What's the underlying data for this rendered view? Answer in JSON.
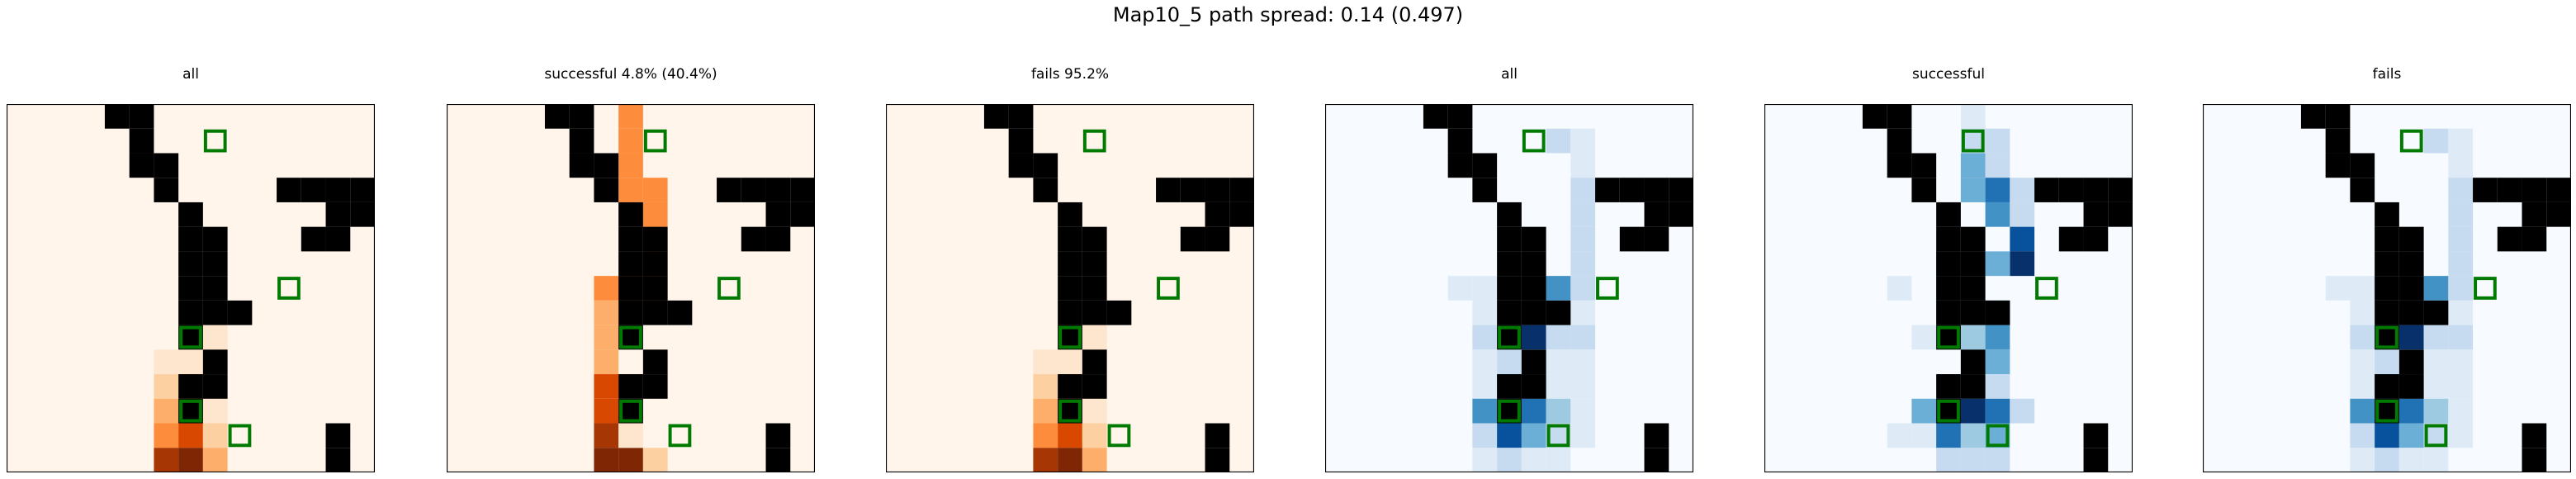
{
  "suptitle": "Map10_5 path spread: 0.14 (0.497)",
  "colors": {
    "wall": "#000000",
    "target_outline": "#007a00",
    "axes_border": "#000000",
    "oranges": [
      "#fff5eb",
      "#fee6ce",
      "#fdd0a2",
      "#fdae6b",
      "#fd8d3c",
      "#f16913",
      "#d94801",
      "#a63603",
      "#7f2704"
    ],
    "blues": [
      "#f7fbff",
      "#deebf7",
      "#c6dbef",
      "#9ecae1",
      "#6baed6",
      "#4292c6",
      "#2171b5",
      "#08519c",
      "#08306b"
    ]
  },
  "chart_data": [
    {
      "type": "heatmap",
      "title": "all",
      "colormap": "oranges",
      "grid": "15x15",
      "walls": "shared",
      "targets": "shared",
      "values": [
        [
          10,
          0,
          12
        ],
        [
          11,
          0,
          30
        ],
        [
          11,
          1,
          12
        ],
        [
          12,
          0,
          40
        ],
        [
          12,
          1,
          45
        ],
        [
          12,
          2,
          18
        ],
        [
          13,
          0,
          55
        ],
        [
          13,
          1,
          80
        ],
        [
          13,
          2,
          30
        ],
        [
          14,
          0,
          92
        ],
        [
          14,
          1,
          100
        ],
        [
          14,
          2,
          35
        ],
        [
          9,
          1,
          10
        ],
        [
          10,
          1,
          12
        ],
        [
          8,
          2,
          5
        ],
        [
          9,
          2,
          6
        ],
        [
          10,
          2,
          6
        ],
        [
          11,
          2,
          8
        ]
      ]
    },
    {
      "type": "heatmap",
      "title": "successful 4.8% (40.4%)",
      "colormap": "oranges",
      "grid": "15x15",
      "walls": "shared",
      "targets": "shared",
      "values": [
        [
          0,
          1,
          50
        ],
        [
          1,
          1,
          50
        ],
        [
          2,
          1,
          50
        ],
        [
          3,
          1,
          50
        ],
        [
          3,
          2,
          50
        ],
        [
          4,
          2,
          50
        ],
        [
          5,
          2,
          50
        ],
        [
          6,
          2,
          50
        ],
        [
          7,
          2,
          50
        ],
        [
          7,
          1,
          50
        ],
        [
          7,
          0,
          50
        ],
        [
          8,
          0,
          40
        ],
        [
          9,
          0,
          40
        ],
        [
          10,
          0,
          40
        ],
        [
          11,
          0,
          70
        ],
        [
          12,
          0,
          80
        ],
        [
          13,
          0,
          90
        ],
        [
          14,
          0,
          95
        ],
        [
          14,
          1,
          100
        ],
        [
          11,
          1,
          12
        ],
        [
          12,
          1,
          12
        ],
        [
          13,
          1,
          12
        ],
        [
          14,
          2,
          20
        ]
      ]
    },
    {
      "type": "heatmap",
      "title": "fails 95.2%",
      "colormap": "oranges",
      "grid": "15x15",
      "walls": "shared",
      "targets": "shared",
      "values": [
        [
          10,
          0,
          12
        ],
        [
          11,
          0,
          30
        ],
        [
          11,
          1,
          12
        ],
        [
          12,
          0,
          40
        ],
        [
          12,
          1,
          45
        ],
        [
          12,
          2,
          18
        ],
        [
          13,
          0,
          55
        ],
        [
          13,
          1,
          80
        ],
        [
          13,
          2,
          30
        ],
        [
          14,
          0,
          92
        ],
        [
          14,
          1,
          100
        ],
        [
          14,
          2,
          35
        ],
        [
          9,
          1,
          10
        ],
        [
          10,
          1,
          12
        ],
        [
          8,
          2,
          5
        ],
        [
          9,
          2,
          6
        ],
        [
          10,
          2,
          6
        ],
        [
          11,
          2,
          8
        ]
      ]
    },
    {
      "type": "heatmap",
      "title": "all",
      "colormap": "blues",
      "grid": "15x15",
      "walls": "shared",
      "targets": "shared",
      "values": [
        [
          1,
          2,
          30
        ],
        [
          1,
          3,
          12
        ],
        [
          2,
          3,
          15
        ],
        [
          3,
          3,
          25
        ],
        [
          4,
          3,
          20
        ],
        [
          5,
          3,
          30
        ],
        [
          6,
          3,
          25
        ],
        [
          7,
          -2,
          10
        ],
        [
          7,
          -1,
          10
        ],
        [
          7,
          0,
          40
        ],
        [
          7,
          1,
          55
        ],
        [
          7,
          2,
          60
        ],
        [
          7,
          3,
          30
        ],
        [
          8,
          -1,
          8
        ],
        [
          8,
          0,
          30
        ],
        [
          8,
          1,
          35
        ],
        [
          8,
          2,
          30
        ],
        [
          8,
          3,
          10
        ],
        [
          9,
          -1,
          20
        ],
        [
          9,
          0,
          40
        ],
        [
          9,
          1,
          100
        ],
        [
          9,
          2,
          30
        ],
        [
          9,
          3,
          30
        ],
        [
          10,
          -1,
          10
        ],
        [
          10,
          0,
          20
        ],
        [
          10,
          1,
          30
        ],
        [
          10,
          2,
          15
        ],
        [
          10,
          3,
          10
        ],
        [
          11,
          -1,
          15
        ],
        [
          11,
          0,
          55
        ],
        [
          11,
          1,
          50
        ],
        [
          11,
          2,
          15
        ],
        [
          11,
          3,
          8
        ],
        [
          12,
          -1,
          60
        ],
        [
          12,
          0,
          80
        ],
        [
          12,
          1,
          80
        ],
        [
          12,
          2,
          40
        ],
        [
          12,
          3,
          10
        ],
        [
          13,
          -1,
          20
        ],
        [
          13,
          0,
          85
        ],
        [
          13,
          1,
          55
        ],
        [
          13,
          2,
          30
        ],
        [
          13,
          3,
          8
        ],
        [
          14,
          -1,
          10
        ],
        [
          14,
          0,
          20
        ],
        [
          14,
          1,
          15
        ],
        [
          14,
          2,
          10
        ]
      ]
    },
    {
      "type": "heatmap",
      "title": "successful",
      "colormap": "blues",
      "grid": "15x15",
      "walls": "shared",
      "targets": "shared",
      "values": [
        [
          0,
          1,
          15
        ],
        [
          1,
          1,
          20
        ],
        [
          1,
          2,
          25
        ],
        [
          2,
          1,
          50
        ],
        [
          2,
          2,
          30
        ],
        [
          3,
          1,
          55
        ],
        [
          3,
          2,
          80
        ],
        [
          3,
          3,
          25
        ],
        [
          4,
          2,
          60
        ],
        [
          4,
          3,
          30
        ],
        [
          5,
          3,
          90
        ],
        [
          6,
          3,
          100
        ],
        [
          6,
          2,
          55
        ],
        [
          6,
          1,
          40
        ],
        [
          6,
          0,
          60
        ],
        [
          7,
          0,
          45
        ],
        [
          8,
          0,
          50
        ],
        [
          8,
          1,
          20
        ],
        [
          8,
          2,
          70
        ],
        [
          9,
          1,
          35
        ],
        [
          9,
          2,
          60
        ],
        [
          10,
          1,
          35
        ],
        [
          10,
          2,
          45
        ],
        [
          11,
          1,
          30
        ],
        [
          11,
          2,
          25
        ],
        [
          12,
          -1,
          45
        ],
        [
          12,
          0,
          80
        ],
        [
          12,
          1,
          95
        ],
        [
          12,
          2,
          70
        ],
        [
          12,
          3,
          25
        ],
        [
          13,
          -1,
          10
        ],
        [
          13,
          0,
          70
        ],
        [
          13,
          1,
          40
        ],
        [
          13,
          2,
          45
        ],
        [
          14,
          0,
          30
        ],
        [
          14,
          1,
          20
        ],
        [
          14,
          2,
          25
        ],
        [
          7,
          -2,
          8
        ],
        [
          11,
          0,
          20
        ],
        [
          9,
          -1,
          8
        ],
        [
          13,
          -2,
          8
        ]
      ]
    },
    {
      "type": "heatmap",
      "title": "fails",
      "colormap": "blues",
      "grid": "15x15",
      "walls": "shared",
      "targets": "shared",
      "values": [
        [
          1,
          2,
          30
        ],
        [
          1,
          3,
          12
        ],
        [
          2,
          3,
          15
        ],
        [
          3,
          3,
          25
        ],
        [
          4,
          3,
          20
        ],
        [
          5,
          3,
          30
        ],
        [
          6,
          3,
          25
        ],
        [
          7,
          -2,
          10
        ],
        [
          7,
          -1,
          10
        ],
        [
          7,
          0,
          40
        ],
        [
          7,
          1,
          55
        ],
        [
          7,
          2,
          60
        ],
        [
          7,
          3,
          30
        ],
        [
          8,
          -1,
          8
        ],
        [
          8,
          0,
          30
        ],
        [
          8,
          1,
          35
        ],
        [
          8,
          2,
          30
        ],
        [
          8,
          3,
          10
        ],
        [
          9,
          -1,
          20
        ],
        [
          9,
          0,
          40
        ],
        [
          9,
          1,
          100
        ],
        [
          9,
          2,
          30
        ],
        [
          9,
          3,
          30
        ],
        [
          10,
          -1,
          10
        ],
        [
          10,
          0,
          20
        ],
        [
          10,
          1,
          30
        ],
        [
          10,
          2,
          15
        ],
        [
          10,
          3,
          10
        ],
        [
          11,
          -1,
          15
        ],
        [
          11,
          0,
          55
        ],
        [
          11,
          1,
          50
        ],
        [
          11,
          2,
          15
        ],
        [
          11,
          3,
          8
        ],
        [
          12,
          -1,
          60
        ],
        [
          12,
          0,
          80
        ],
        [
          12,
          1,
          80
        ],
        [
          12,
          2,
          40
        ],
        [
          12,
          3,
          10
        ],
        [
          13,
          -1,
          20
        ],
        [
          13,
          0,
          85
        ],
        [
          13,
          1,
          55
        ],
        [
          13,
          2,
          30
        ],
        [
          13,
          3,
          8
        ],
        [
          14,
          -1,
          10
        ],
        [
          14,
          0,
          20
        ],
        [
          14,
          1,
          15
        ],
        [
          14,
          2,
          10
        ]
      ]
    }
  ],
  "shared": {
    "walls": [
      [
        0,
        4
      ],
      [
        0,
        5
      ],
      [
        1,
        5
      ],
      [
        2,
        5
      ],
      [
        2,
        6
      ],
      [
        3,
        6
      ],
      [
        3,
        11
      ],
      [
        3,
        12
      ],
      [
        3,
        13
      ],
      [
        3,
        14
      ],
      [
        4,
        7
      ],
      [
        4,
        13
      ],
      [
        4,
        14
      ],
      [
        5,
        12
      ],
      [
        5,
        13
      ],
      [
        5,
        7
      ],
      [
        5,
        8
      ],
      [
        6,
        7
      ],
      [
        6,
        8
      ],
      [
        7,
        7
      ],
      [
        7,
        8
      ],
      [
        8,
        7
      ],
      [
        8,
        8
      ],
      [
        8,
        9
      ],
      [
        9,
        7
      ],
      [
        10,
        8
      ],
      [
        11,
        7
      ],
      [
        11,
        8
      ],
      [
        12,
        7
      ],
      [
        13,
        13
      ],
      [
        14,
        13
      ]
    ],
    "targets": [
      [
        1,
        8
      ],
      [
        7,
        11
      ],
      [
        9,
        7
      ],
      [
        12,
        7
      ],
      [
        13,
        9
      ]
    ]
  }
}
